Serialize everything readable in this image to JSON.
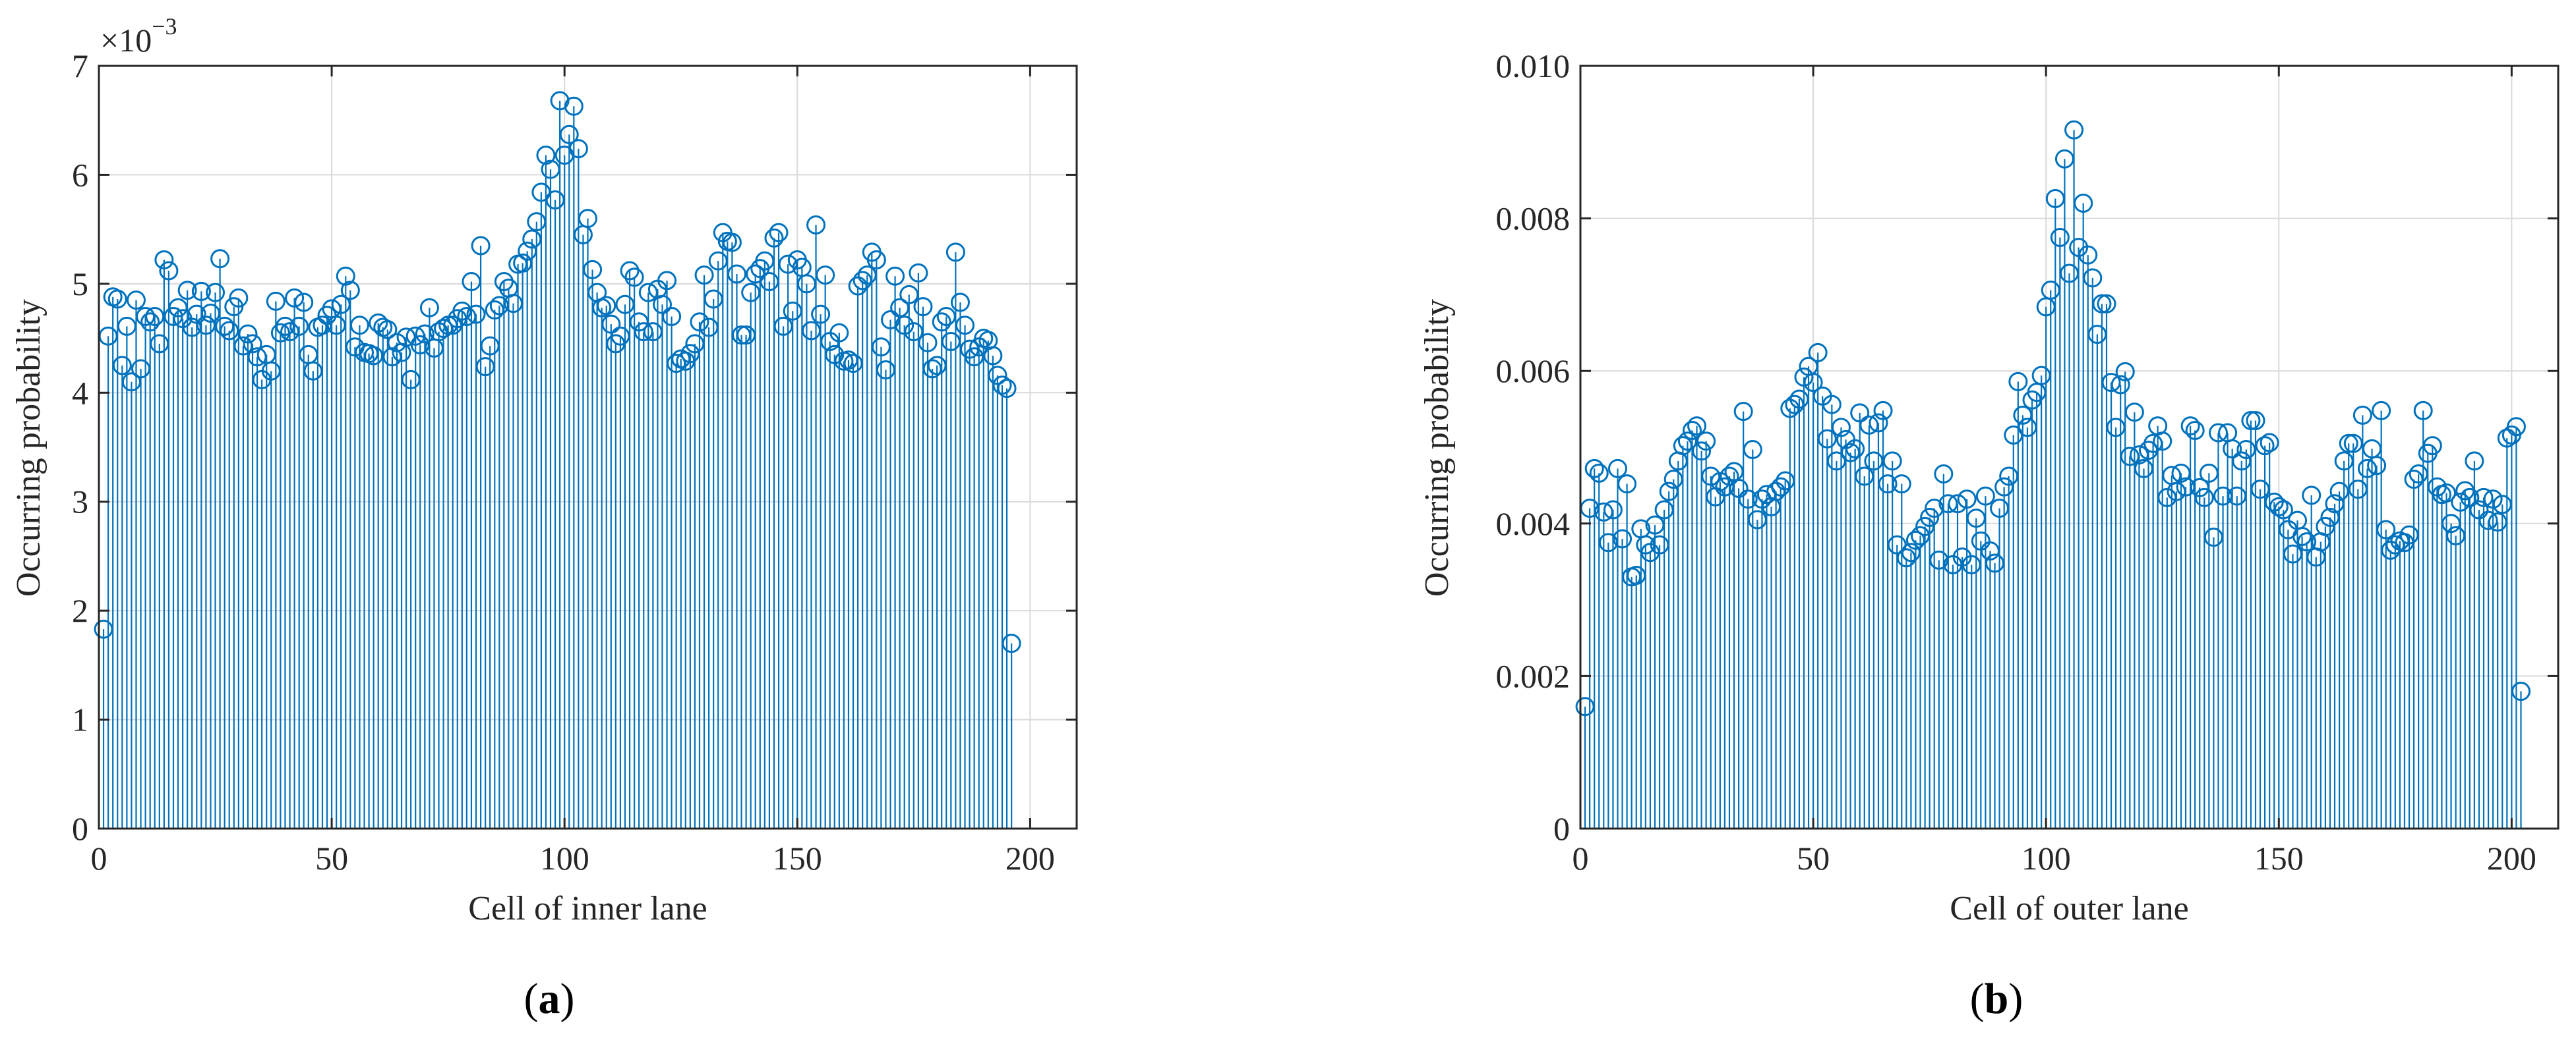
{
  "chart_data": [
    {
      "type": "stem",
      "panel_label": "(a)",
      "panel_letter": "a",
      "xlabel": "Cell of inner lane",
      "ylabel": "Occurring probability",
      "exponent_label": "×10",
      "exponent_power": "−3",
      "xlim": [
        0,
        210
      ],
      "ylim": [
        0,
        7
      ],
      "xticks": [
        0,
        50,
        100,
        150,
        200
      ],
      "yticks": [
        0,
        1,
        2,
        3,
        4,
        5,
        6,
        7
      ],
      "ytick_labels": [
        "0",
        "1",
        "2",
        "3",
        "4",
        "5",
        "6",
        "7"
      ],
      "grid": true,
      "colors": {
        "stem": "#0072bd"
      },
      "x_start": 1,
      "values": [
        1.83,
        4.52,
        4.88,
        4.86,
        4.25,
        4.61,
        4.1,
        4.85,
        4.22,
        4.7,
        4.65,
        4.7,
        4.45,
        5.22,
        5.12,
        4.7,
        4.78,
        4.68,
        4.94,
        4.6,
        4.72,
        4.93,
        4.62,
        4.73,
        4.92,
        5.23,
        4.61,
        4.57,
        4.79,
        4.87,
        4.43,
        4.54,
        4.45,
        4.33,
        4.12,
        4.35,
        4.2,
        4.84,
        4.55,
        4.61,
        4.56,
        4.87,
        4.61,
        4.83,
        4.35,
        4.2,
        4.6,
        4.62,
        4.71,
        4.77,
        4.62,
        4.81,
        5.07,
        4.94,
        4.42,
        4.62,
        4.37,
        4.36,
        4.34,
        4.64,
        4.6,
        4.58,
        4.33,
        4.46,
        4.37,
        4.51,
        4.12,
        4.52,
        4.44,
        4.54,
        4.78,
        4.41,
        4.56,
        4.59,
        4.62,
        4.62,
        4.68,
        4.75,
        4.7,
        5.02,
        4.72,
        5.35,
        4.24,
        4.43,
        4.76,
        4.8,
        5.02,
        4.96,
        4.82,
        5.18,
        5.19,
        5.3,
        5.41,
        5.57,
        5.84,
        6.18,
        6.05,
        5.77,
        6.68,
        6.18,
        6.37,
        6.63,
        6.24,
        5.45,
        5.6,
        5.13,
        4.92,
        4.78,
        4.8,
        4.63,
        4.45,
        4.52,
        4.81,
        5.12,
        5.06,
        4.65,
        4.56,
        4.92,
        4.56,
        4.95,
        4.81,
        5.03,
        4.7,
        4.27,
        4.31,
        4.29,
        4.36,
        4.45,
        4.65,
        5.08,
        4.6,
        4.86,
        5.21,
        5.47,
        5.39,
        5.38,
        5.09,
        4.53,
        4.53,
        4.92,
        5.09,
        5.14,
        5.21,
        5.02,
        5.42,
        5.47,
        4.61,
        5.18,
        4.75,
        5.22,
        5.15,
        5.0,
        4.57,
        5.54,
        4.72,
        5.08,
        4.47,
        4.35,
        4.55,
        4.29,
        4.3,
        4.27,
        4.98,
        5.03,
        5.08,
        5.29,
        5.22,
        4.42,
        4.21,
        4.67,
        5.07,
        4.78,
        4.62,
        4.9,
        4.56,
        5.1,
        4.79,
        4.46,
        4.22,
        4.25,
        4.65,
        4.7,
        4.47,
        5.29,
        4.83,
        4.62,
        4.4,
        4.33,
        4.42,
        4.5,
        4.48,
        4.34,
        4.16,
        4.07,
        4.04,
        1.7
      ]
    },
    {
      "type": "stem",
      "panel_label": "(b)",
      "panel_letter": "b",
      "xlabel": "Cell of outer lane",
      "ylabel": "Occurring probability",
      "xlim": [
        0,
        210
      ],
      "ylim": [
        0,
        0.01
      ],
      "xticks": [
        0,
        50,
        100,
        150,
        200
      ],
      "yticks": [
        0,
        0.002,
        0.004,
        0.006,
        0.008,
        0.01
      ],
      "ytick_labels": [
        "0",
        "0.002",
        "0.004",
        "0.006",
        "0.008",
        "0.010"
      ],
      "grid": true,
      "colors": {
        "stem": "#0072bd"
      },
      "x_start": 1,
      "values": [
        0.0016,
        0.0042,
        0.00472,
        0.00466,
        0.00415,
        0.00375,
        0.00418,
        0.00472,
        0.0038,
        0.00452,
        0.0033,
        0.00332,
        0.00393,
        0.00372,
        0.00362,
        0.00398,
        0.00372,
        0.00418,
        0.00442,
        0.00458,
        0.00482,
        0.00502,
        0.00508,
        0.00522,
        0.00528,
        0.00495,
        0.00508,
        0.00462,
        0.00435,
        0.00455,
        0.00448,
        0.00462,
        0.00468,
        0.00446,
        0.00547,
        0.00432,
        0.00497,
        0.00405,
        0.00432,
        0.00438,
        0.00422,
        0.00442,
        0.00448,
        0.00456,
        0.00551,
        0.00556,
        0.00563,
        0.00592,
        0.00606,
        0.00585,
        0.00624,
        0.00567,
        0.00511,
        0.00556,
        0.00482,
        0.00526,
        0.0051,
        0.00493,
        0.00498,
        0.00545,
        0.00462,
        0.00529,
        0.00482,
        0.00532,
        0.00548,
        0.00452,
        0.00482,
        0.00372,
        0.00452,
        0.00355,
        0.00362,
        0.00378,
        0.00384,
        0.00396,
        0.00408,
        0.0042,
        0.00352,
        0.00465,
        0.00426,
        0.00346,
        0.00426,
        0.00356,
        0.00432,
        0.00346,
        0.00407,
        0.00377,
        0.00436,
        0.00364,
        0.00348,
        0.0042,
        0.00448,
        0.00462,
        0.00516,
        0.00586,
        0.00542,
        0.00526,
        0.00562,
        0.00572,
        0.00594,
        0.00684,
        0.00706,
        0.00826,
        0.00775,
        0.00878,
        0.00728,
        0.00916,
        0.00762,
        0.0082,
        0.00752,
        0.00722,
        0.00648,
        0.00688,
        0.00688,
        0.00585,
        0.00526,
        0.00582,
        0.00599,
        0.00488,
        0.00546,
        0.0049,
        0.00472,
        0.00496,
        0.00505,
        0.00528,
        0.00508,
        0.00434,
        0.00463,
        0.00442,
        0.00466,
        0.00448,
        0.00528,
        0.00522,
        0.00447,
        0.00434,
        0.00466,
        0.00382,
        0.00519,
        0.00436,
        0.00519,
        0.00498,
        0.00436,
        0.00482,
        0.00497,
        0.00535,
        0.00535,
        0.00445,
        0.00502,
        0.00506,
        0.00428,
        0.00422,
        0.00418,
        0.00392,
        0.0036,
        0.00404,
        0.00383,
        0.00376,
        0.00437,
        0.00356,
        0.00376,
        0.00396,
        0.00408,
        0.00426,
        0.00442,
        0.00482,
        0.00505,
        0.00505,
        0.00445,
        0.00542,
        0.00472,
        0.00498,
        0.00476,
        0.00548,
        0.00392,
        0.00365,
        0.00372,
        0.00377,
        0.00375,
        0.00385,
        0.00458,
        0.00465,
        0.00548,
        0.00492,
        0.00502,
        0.00448,
        0.00438,
        0.0044,
        0.004,
        0.00384,
        0.00428,
        0.00443,
        0.00434,
        0.00482,
        0.00418,
        0.00434,
        0.00404,
        0.00432,
        0.00402,
        0.00425,
        0.00512,
        0.00516,
        0.00527,
        0.0018
      ]
    }
  ]
}
